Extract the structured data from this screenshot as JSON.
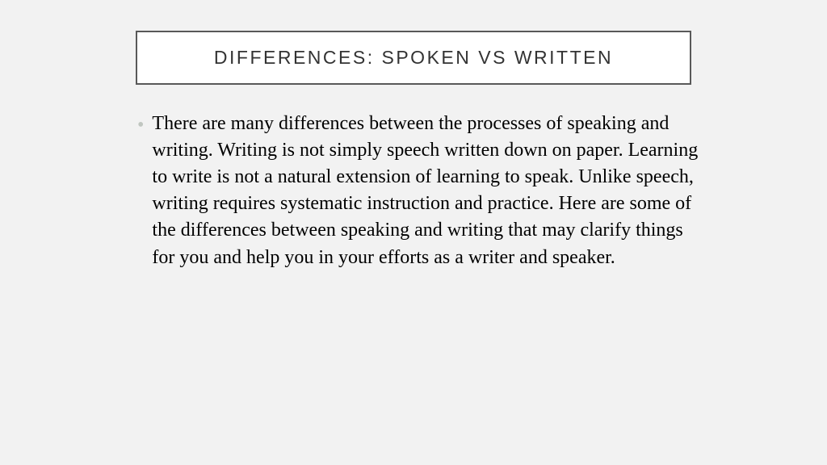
{
  "slide": {
    "title": "DIFFERENCES: SPOKEN VS WRITTEN",
    "body_text": "There are many differences between the processes of speaking and writing. Writing is not simply speech written down on paper. Learning to write is not a natural extension of learning to speak. Unlike speech, writing requires systematic instruction and practice. Here are some of the differences between speaking and writing that may clarify things for you and help you in your efforts as a writer and speaker."
  },
  "colors": {
    "background": "#f2f2f2",
    "title_box_bg": "#ffffff",
    "title_box_border": "#595959",
    "title_text": "#333333",
    "bullet": "#c0c6c0",
    "body_text": "#000000"
  },
  "typography": {
    "title_font": "Segoe UI",
    "title_fontsize": 23,
    "title_letterspacing": 2.5,
    "body_font": "Times New Roman",
    "body_fontsize": 24,
    "body_lineheight": 1.38
  },
  "layout": {
    "title_box_width": 688,
    "content_width": 720,
    "slide_width": 1024,
    "slide_height": 576
  }
}
